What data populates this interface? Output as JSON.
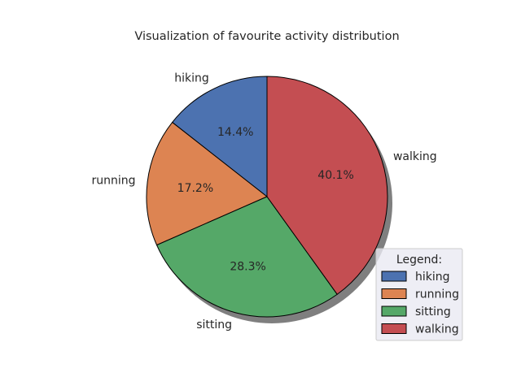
{
  "chart_data": {
    "type": "pie",
    "title": "Visualization of favourite activity distribution",
    "categories": [
      "hiking",
      "running",
      "sitting",
      "walking"
    ],
    "values": [
      14.4,
      17.2,
      28.3,
      40.1
    ],
    "value_labels": [
      "14.4%",
      "17.2%",
      "28.3%",
      "40.1%"
    ],
    "colors": [
      "#4c72b0",
      "#dd8452",
      "#55a868",
      "#c44e52"
    ],
    "start_angle_deg": 90,
    "direction": "counterclockwise",
    "shadow": true,
    "legend": {
      "title": "Legend:",
      "placement": "lower-right",
      "entries": [
        "hiking",
        "running",
        "sitting",
        "walking"
      ]
    }
  }
}
